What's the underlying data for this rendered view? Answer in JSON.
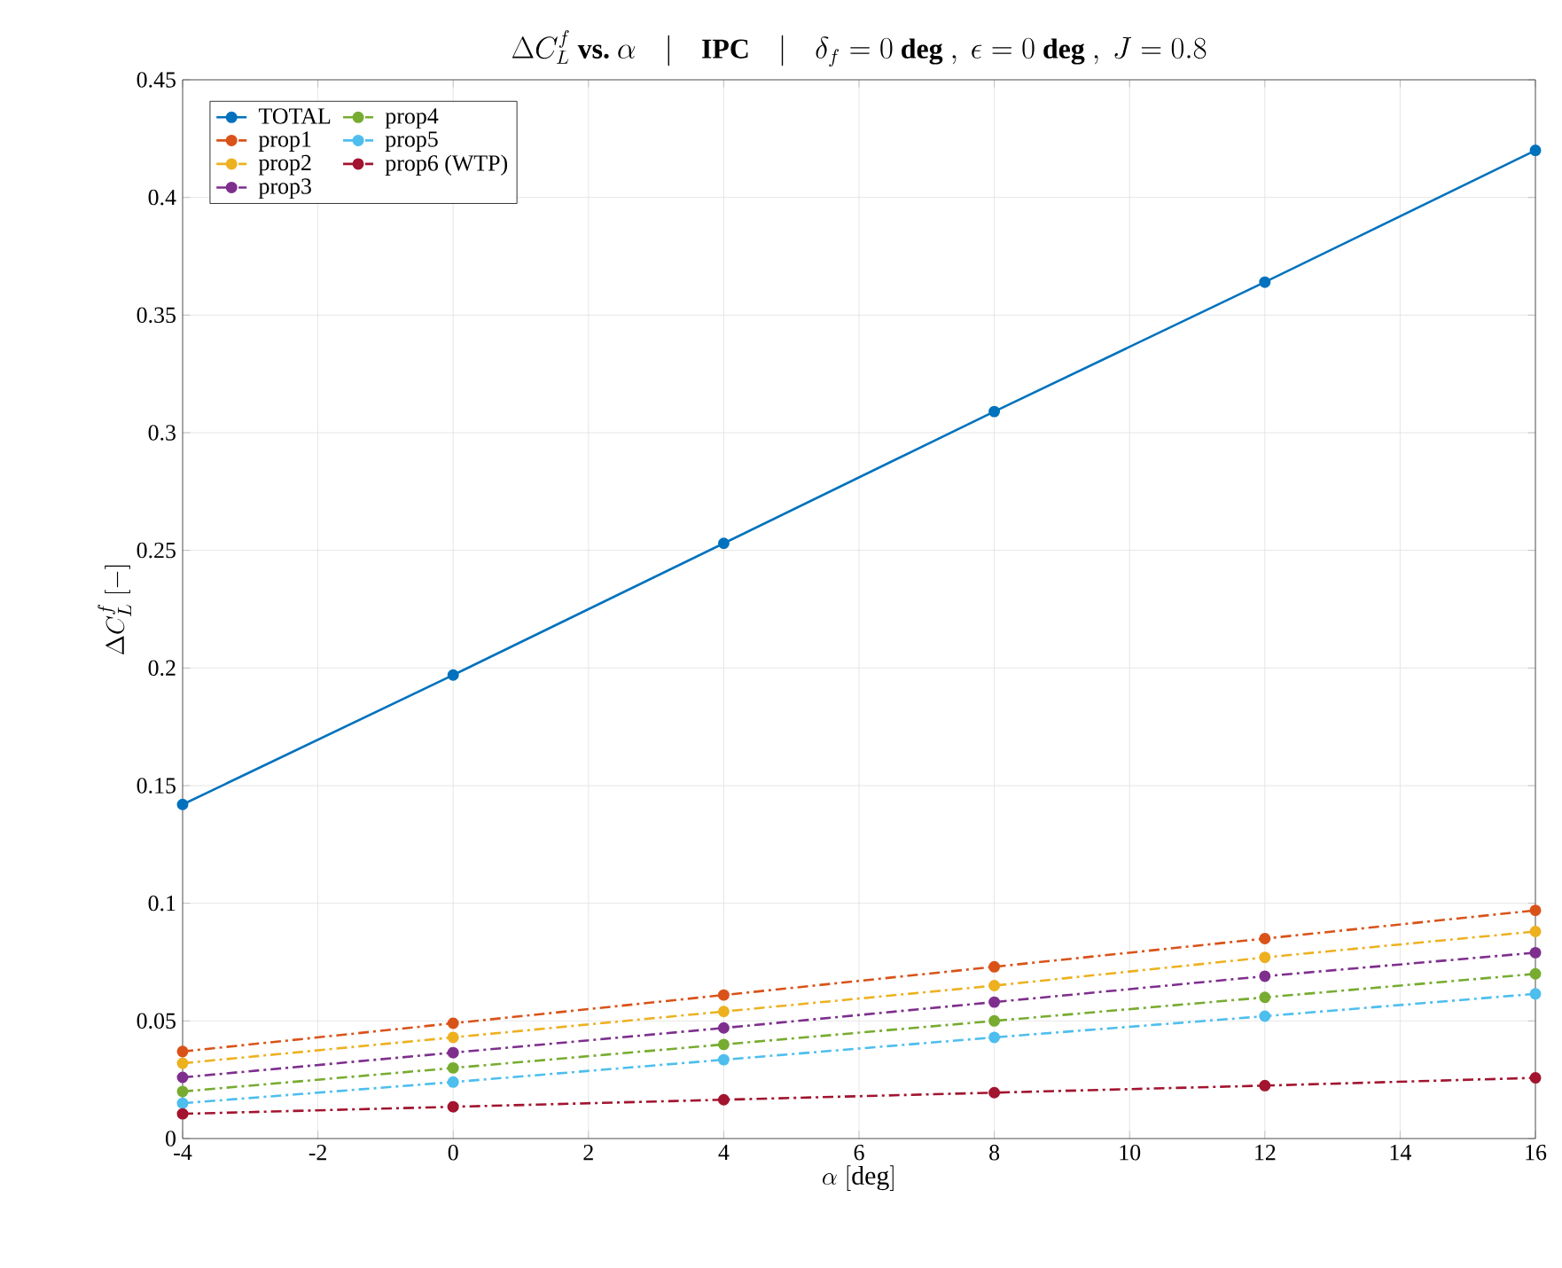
{
  "chart_data": {
    "type": "line",
    "title": "\\Delta C_L^f\\ \\textbf{vs.}\\ \\alpha\\quad|\\quad\\textbf{IPC}\\quad|\\quad\\delta_f=0\\ \\textbf{deg}\\ ,\\ \\epsilon=0\\ \\textbf{deg}\\ ,\\ J=0.8",
    "xlabel": "\\alpha\\ \\mathrm{[deg]}",
    "ylabel": "\\Delta C_L^f\\ \\mathrm{[-]}",
    "x": [
      -4,
      0,
      4,
      8,
      12,
      16
    ],
    "series": [
      {
        "name": "TOTAL",
        "color": "#0072bd",
        "line_style": "solid",
        "values": [
          0.142,
          0.197,
          0.253,
          0.309,
          0.364,
          0.42
        ]
      },
      {
        "name": "prop1",
        "color": "#d95319",
        "line_style": "dashdot",
        "values": [
          0.037,
          0.049,
          0.061,
          0.073,
          0.085,
          0.097
        ]
      },
      {
        "name": "prop2",
        "color": "#edb120",
        "line_style": "dashdot",
        "values": [
          0.032,
          0.043,
          0.054,
          0.065,
          0.077,
          0.088
        ]
      },
      {
        "name": "prop3",
        "color": "#7e2f8e",
        "line_style": "dashdot",
        "values": [
          0.026,
          0.0365,
          0.047,
          0.058,
          0.069,
          0.079
        ]
      },
      {
        "name": "prop4",
        "color": "#77ac30",
        "line_style": "dashdot",
        "values": [
          0.02,
          0.03,
          0.04,
          0.05,
          0.06,
          0.07
        ]
      },
      {
        "name": "prop5",
        "color": "#4dbeee",
        "line_style": "dashdot",
        "values": [
          0.015,
          0.024,
          0.0335,
          0.043,
          0.052,
          0.0615
        ]
      },
      {
        "name": "prop6 (WTP)",
        "color": "#a2142f",
        "line_style": "dashdot",
        "values": [
          0.0105,
          0.0135,
          0.0165,
          0.0195,
          0.0225,
          0.0258
        ]
      }
    ],
    "xlim": [
      -4,
      16
    ],
    "xticks": [
      -4,
      -2,
      0,
      2,
      4,
      6,
      8,
      10,
      12,
      14,
      16
    ],
    "ylim": [
      0,
      0.45
    ],
    "yticks": [
      0,
      0.05,
      0.1,
      0.15,
      0.2,
      0.25,
      0.3,
      0.35,
      0.4,
      0.45
    ],
    "grid": true,
    "legend": "top left",
    "marker": "circle"
  }
}
